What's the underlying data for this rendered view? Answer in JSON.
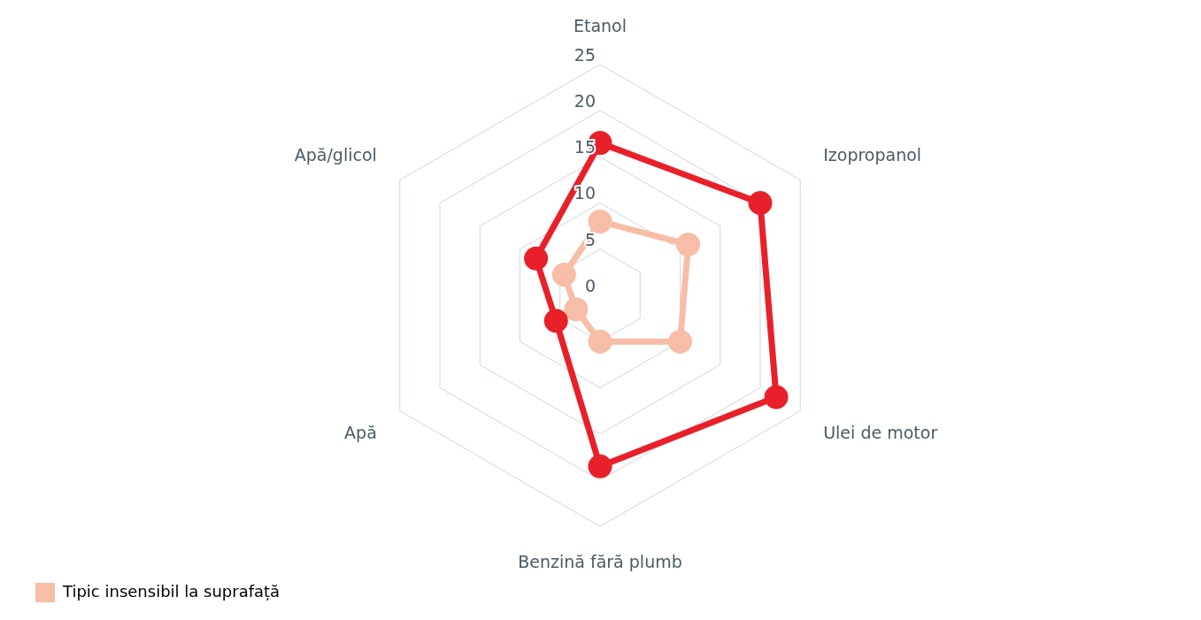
{
  "chart_data": {
    "type": "radar",
    "categories": [
      "Etanol",
      "Izopropanol",
      "Ulei de motor",
      "Benzină fără plumb",
      "Apă",
      "Apă/glicol"
    ],
    "series": [
      {
        "color": "#e8202a",
        "values": [
          16.5,
          20,
          22,
          18.5,
          5.5,
          8
        ]
      },
      {
        "name": "Tipic insensibil la suprafață",
        "color": "#f8bda6",
        "values": [
          8,
          11,
          10,
          5,
          3,
          4.5
        ]
      }
    ],
    "ylim": [
      0,
      25
    ],
    "yticks": [
      0,
      5,
      10,
      15,
      20,
      25
    ],
    "grid": true,
    "legend": "bottom left",
    "marker": "circle"
  }
}
